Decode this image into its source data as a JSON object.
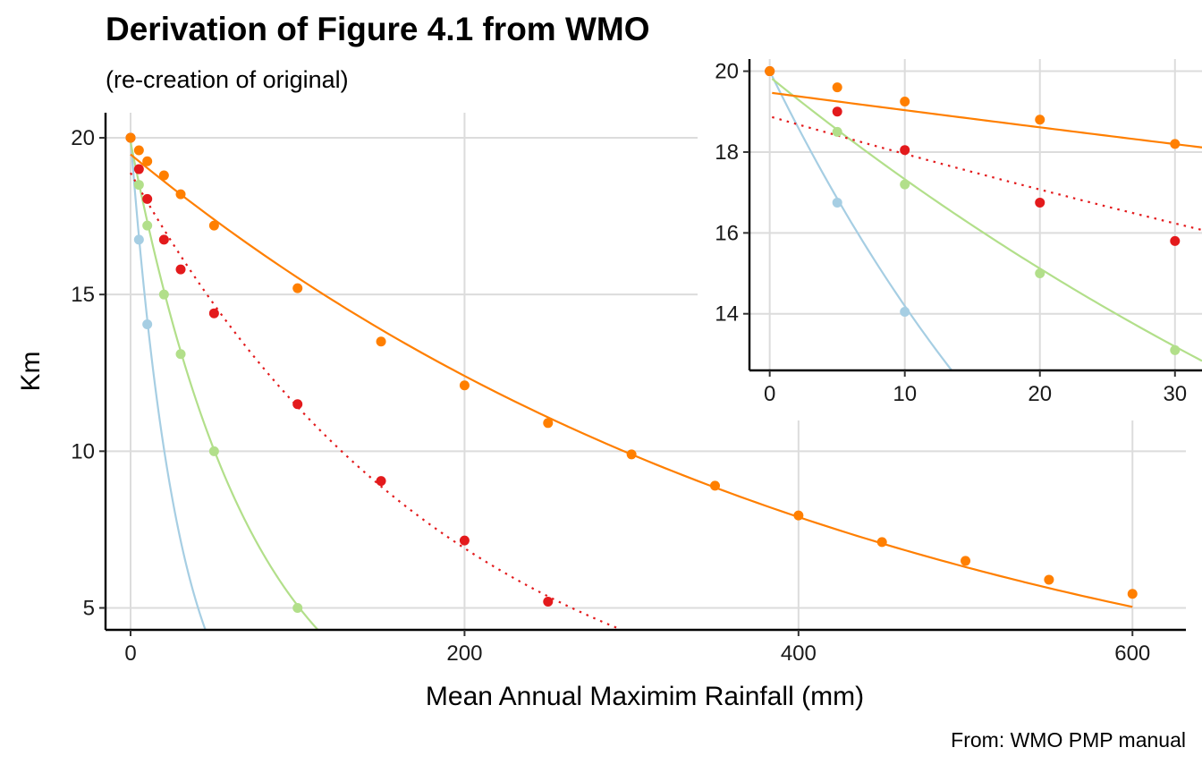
{
  "chart": {
    "title": "Derivation of Figure 4.1 from WMO",
    "subtitle": "(re-creation of original)",
    "caption": "From: WMO PMP manual",
    "xlabel": "Mean Annual Maximim Rainfall (mm)",
    "ylabel": "Km"
  },
  "chart_data": [
    {
      "type": "scatter",
      "panel": "main",
      "xlim": [
        -15,
        632
      ],
      "ylim": [
        4.3,
        20.8
      ],
      "x_ticks": [
        0,
        200,
        400,
        600
      ],
      "y_ticks": [
        5,
        10,
        15,
        20
      ],
      "grid": true,
      "series": [
        {
          "color": "#a6cee3",
          "points": [
            [
              0,
              20
            ],
            [
              5,
              16.75
            ],
            [
              10,
              14.05
            ]
          ],
          "fit": {
            "style": "solid",
            "form": "exp",
            "a": 20,
            "b": 0.0343,
            "x_range": [
              0,
              45
            ]
          }
        },
        {
          "color": "#b2df8a",
          "points": [
            [
              0,
              20
            ],
            [
              5,
              18.5
            ],
            [
              10,
              17.2
            ],
            [
              20,
              15.0
            ],
            [
              30,
              13.1
            ],
            [
              50,
              10.0
            ],
            [
              100,
              5.0
            ]
          ],
          "fit": {
            "style": "solid",
            "form": "exp",
            "a": 19.86,
            "b": 0.01364,
            "x_range": [
              0,
              112
            ]
          }
        },
        {
          "color": "#e31a1c",
          "points": [
            [
              0,
              20
            ],
            [
              5,
              19.0
            ],
            [
              10,
              18.05
            ],
            [
              20,
              16.75
            ],
            [
              30,
              15.8
            ],
            [
              50,
              14.4
            ],
            [
              100,
              11.5
            ],
            [
              150,
              9.05
            ],
            [
              200,
              7.15
            ],
            [
              250,
              5.2
            ]
          ],
          "fit": {
            "style": "dotted",
            "form": "exp",
            "a": 18.88,
            "b": 0.00503,
            "x_range": [
              0,
              292
            ]
          }
        },
        {
          "color": "#ff7f00",
          "points": [
            [
              0,
              20
            ],
            [
              5,
              19.6
            ],
            [
              10,
              19.25
            ],
            [
              20,
              18.8
            ],
            [
              30,
              18.2
            ],
            [
              50,
              17.2
            ],
            [
              100,
              15.2
            ],
            [
              150,
              13.5
            ],
            [
              200,
              12.1
            ],
            [
              250,
              10.9
            ],
            [
              300,
              9.9
            ],
            [
              350,
              8.9
            ],
            [
              400,
              7.95
            ],
            [
              450,
              7.1
            ],
            [
              500,
              6.5
            ],
            [
              550,
              5.9
            ],
            [
              600,
              5.45
            ]
          ],
          "fit": {
            "style": "solid",
            "form": "exp",
            "a": 19.47,
            "b": 0.002255,
            "x_range": [
              0,
              600
            ]
          }
        }
      ]
    },
    {
      "type": "scatter",
      "panel": "inset",
      "xlim": [
        -1.5,
        32
      ],
      "ylim": [
        12.6,
        20.3
      ],
      "x_ticks": [
        0,
        10,
        20,
        30
      ],
      "y_ticks": [
        14,
        16,
        18,
        20
      ],
      "grid": true,
      "series": [
        {
          "color": "#a6cee3",
          "points": [
            [
              0,
              20
            ],
            [
              5,
              16.75
            ],
            [
              10,
              14.05
            ]
          ]
        },
        {
          "color": "#b2df8a",
          "points": [
            [
              0,
              20
            ],
            [
              5,
              18.5
            ],
            [
              10,
              17.2
            ],
            [
              20,
              15.0
            ],
            [
              30,
              13.1
            ]
          ]
        },
        {
          "color": "#e31a1c",
          "points": [
            [
              0,
              20
            ],
            [
              5,
              19.0
            ],
            [
              10,
              18.05
            ],
            [
              20,
              16.75
            ],
            [
              30,
              15.8
            ]
          ]
        },
        {
          "color": "#ff7f00",
          "points": [
            [
              0,
              20
            ],
            [
              5,
              19.6
            ],
            [
              10,
              19.25
            ],
            [
              20,
              18.8
            ],
            [
              30,
              18.2
            ]
          ]
        }
      ]
    }
  ]
}
